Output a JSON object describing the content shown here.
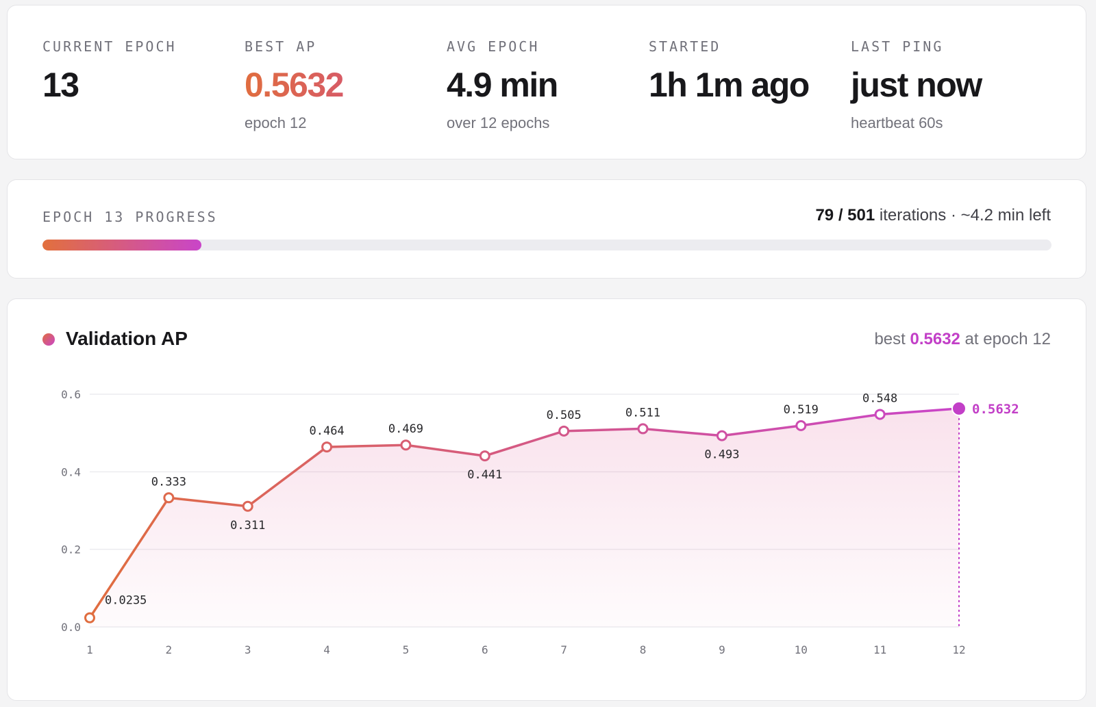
{
  "stats": [
    {
      "label": "CURRENT EPOCH",
      "value": "13",
      "sub": ""
    },
    {
      "label": "BEST AP",
      "value": "0.5632",
      "sub": "epoch 12"
    },
    {
      "label": "AVG EPOCH",
      "value": "4.9 min",
      "sub": "over 12 epochs"
    },
    {
      "label": "STARTED",
      "value": "1h 1m ago",
      "sub": ""
    },
    {
      "label": "LAST PING",
      "value": "just now",
      "sub": "heartbeat 60s"
    }
  ],
  "progress": {
    "label": "EPOCH 13 PROGRESS",
    "current": "79",
    "total": "501",
    "sep": " / ",
    "suffix": " iterations · ~4.2 min left",
    "fraction": 0.1577
  },
  "chart": {
    "title": "Validation AP",
    "best_prefix": "best ",
    "best_value": "0.5632",
    "best_suffix": " at epoch 12"
  },
  "colors": {
    "start": "#e06d3f",
    "end": "#c945c9",
    "accent": "#c23fc7"
  },
  "chart_data": {
    "type": "line",
    "x": [
      1,
      2,
      3,
      4,
      5,
      6,
      7,
      8,
      9,
      10,
      11,
      12
    ],
    "series": [
      {
        "values": [
          0.0235,
          0.333,
          0.311,
          0.464,
          0.469,
          0.441,
          0.505,
          0.511,
          0.493,
          0.519,
          0.548,
          0.5632
        ],
        "labels": [
          "0.0235",
          "0.333",
          "0.311",
          "0.464",
          "0.469",
          "0.441",
          "0.505",
          "0.511",
          "0.493",
          "0.519",
          "0.548",
          "0.5632"
        ]
      }
    ],
    "xticks": [
      "1",
      "2",
      "3",
      "4",
      "5",
      "6",
      "7",
      "8",
      "9",
      "10",
      "11",
      "12"
    ],
    "yticks": [
      "0.0",
      "0.2",
      "0.4",
      "0.6"
    ],
    "ylim": [
      0,
      0.6
    ],
    "xlim": [
      1,
      12
    ],
    "grid": true,
    "highlight_index": 11
  }
}
